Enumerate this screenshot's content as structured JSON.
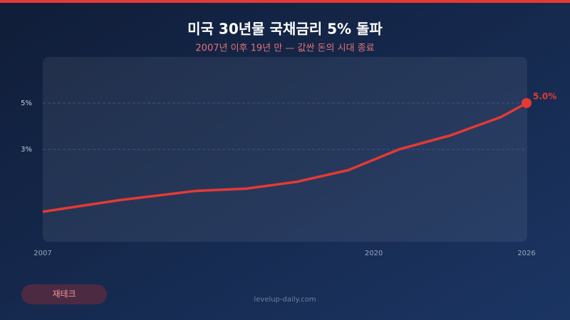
{
  "chart_data": {
    "type": "line",
    "title": "미국 30년물 국채금리 5% 돌파",
    "subtitle": "2007년 이후 19년 만 — 값싼 돈의 시대 종료",
    "x": [
      2007,
      2010,
      2013,
      2015,
      2017,
      2019,
      2021,
      2023,
      2025,
      2026
    ],
    "series": [
      {
        "name": "미국 30년물 국채금리",
        "color": "#e53935",
        "values": [
          0.3,
          0.8,
          1.2,
          1.3,
          1.6,
          2.1,
          3.0,
          3.6,
          4.4,
          5.0
        ],
        "value_labels": [
          null,
          null,
          null,
          null,
          null,
          null,
          null,
          null,
          null,
          "5.0%"
        ]
      }
    ],
    "xlim": [
      2007,
      2026
    ],
    "xticks": [
      2007,
      2020,
      2026
    ],
    "ylim": [
      -1,
      7
    ],
    "yticks": [
      {
        "value": 3,
        "label": "3%"
      },
      {
        "value": 5,
        "label": "5%"
      }
    ],
    "grid": true
  },
  "tag": "재테크",
  "footer": "levelup-daily.com"
}
